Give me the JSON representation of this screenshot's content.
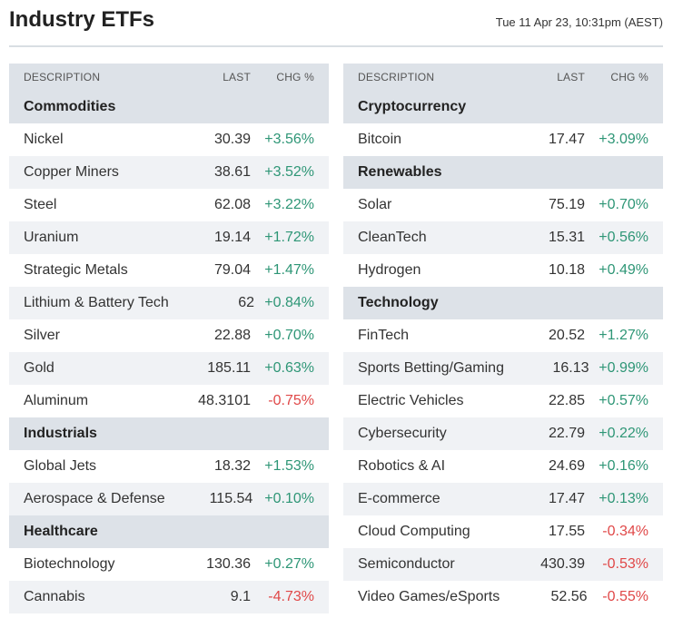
{
  "header": {
    "title": "Industry ETFs",
    "timestamp": "Tue 11 Apr 23, 10:31pm (AEST)"
  },
  "columns": {
    "description": "DESCRIPTION",
    "last": "LAST",
    "chg": "CHG %"
  },
  "colors": {
    "positive": "#2e9676",
    "negative": "#e04848",
    "header_bg": "#dde2e8",
    "alt_row_bg": "#f0f2f5"
  },
  "left_table": [
    {
      "type": "group",
      "label": "Commodities"
    },
    {
      "type": "row",
      "desc": "Nickel",
      "last": "30.39",
      "chg": "+3.56%",
      "dir": "pos"
    },
    {
      "type": "row",
      "desc": "Copper Miners",
      "last": "38.61",
      "chg": "+3.52%",
      "dir": "pos"
    },
    {
      "type": "row",
      "desc": "Steel",
      "last": "62.08",
      "chg": "+3.22%",
      "dir": "pos"
    },
    {
      "type": "row",
      "desc": "Uranium",
      "last": "19.14",
      "chg": "+1.72%",
      "dir": "pos"
    },
    {
      "type": "row",
      "desc": "Strategic Metals",
      "last": "79.04",
      "chg": "+1.47%",
      "dir": "pos"
    },
    {
      "type": "row",
      "desc": "Lithium & Battery Tech",
      "last": "62",
      "chg": "+0.84%",
      "dir": "pos"
    },
    {
      "type": "row",
      "desc": "Silver",
      "last": "22.88",
      "chg": "+0.70%",
      "dir": "pos"
    },
    {
      "type": "row",
      "desc": "Gold",
      "last": "185.11",
      "chg": "+0.63%",
      "dir": "pos"
    },
    {
      "type": "row",
      "desc": "Aluminum",
      "last": "48.3101",
      "chg": "-0.75%",
      "dir": "neg"
    },
    {
      "type": "group",
      "label": "Industrials"
    },
    {
      "type": "row",
      "desc": "Global Jets",
      "last": "18.32",
      "chg": "+1.53%",
      "dir": "pos"
    },
    {
      "type": "row",
      "desc": "Aerospace & Defense",
      "last": "115.54",
      "chg": "+0.10%",
      "dir": "pos"
    },
    {
      "type": "group",
      "label": "Healthcare"
    },
    {
      "type": "row",
      "desc": "Biotechnology",
      "last": "130.36",
      "chg": "+0.27%",
      "dir": "pos"
    },
    {
      "type": "row",
      "desc": "Cannabis",
      "last": "9.1",
      "chg": "-4.73%",
      "dir": "neg"
    }
  ],
  "right_table": [
    {
      "type": "group",
      "label": "Cryptocurrency"
    },
    {
      "type": "row",
      "desc": "Bitcoin",
      "last": "17.47",
      "chg": "+3.09%",
      "dir": "pos"
    },
    {
      "type": "group",
      "label": "Renewables"
    },
    {
      "type": "row",
      "desc": "Solar",
      "last": "75.19",
      "chg": "+0.70%",
      "dir": "pos"
    },
    {
      "type": "row",
      "desc": "CleanTech",
      "last": "15.31",
      "chg": "+0.56%",
      "dir": "pos"
    },
    {
      "type": "row",
      "desc": "Hydrogen",
      "last": "10.18",
      "chg": "+0.49%",
      "dir": "pos"
    },
    {
      "type": "group",
      "label": "Technology"
    },
    {
      "type": "row",
      "desc": "FinTech",
      "last": "20.52",
      "chg": "+1.27%",
      "dir": "pos"
    },
    {
      "type": "row",
      "desc": "Sports Betting/Gaming",
      "last": "16.13",
      "chg": "+0.99%",
      "dir": "pos"
    },
    {
      "type": "row",
      "desc": "Electric Vehicles",
      "last": "22.85",
      "chg": "+0.57%",
      "dir": "pos"
    },
    {
      "type": "row",
      "desc": "Cybersecurity",
      "last": "22.79",
      "chg": "+0.22%",
      "dir": "pos"
    },
    {
      "type": "row",
      "desc": "Robotics & AI",
      "last": "24.69",
      "chg": "+0.16%",
      "dir": "pos"
    },
    {
      "type": "row",
      "desc": "E-commerce",
      "last": "17.47",
      "chg": "+0.13%",
      "dir": "pos"
    },
    {
      "type": "row",
      "desc": "Cloud Computing",
      "last": "17.55",
      "chg": "-0.34%",
      "dir": "neg"
    },
    {
      "type": "row",
      "desc": "Semiconductor",
      "last": "430.39",
      "chg": "-0.53%",
      "dir": "neg"
    },
    {
      "type": "row",
      "desc": "Video Games/eSports",
      "last": "52.56",
      "chg": "-0.55%",
      "dir": "neg"
    }
  ]
}
